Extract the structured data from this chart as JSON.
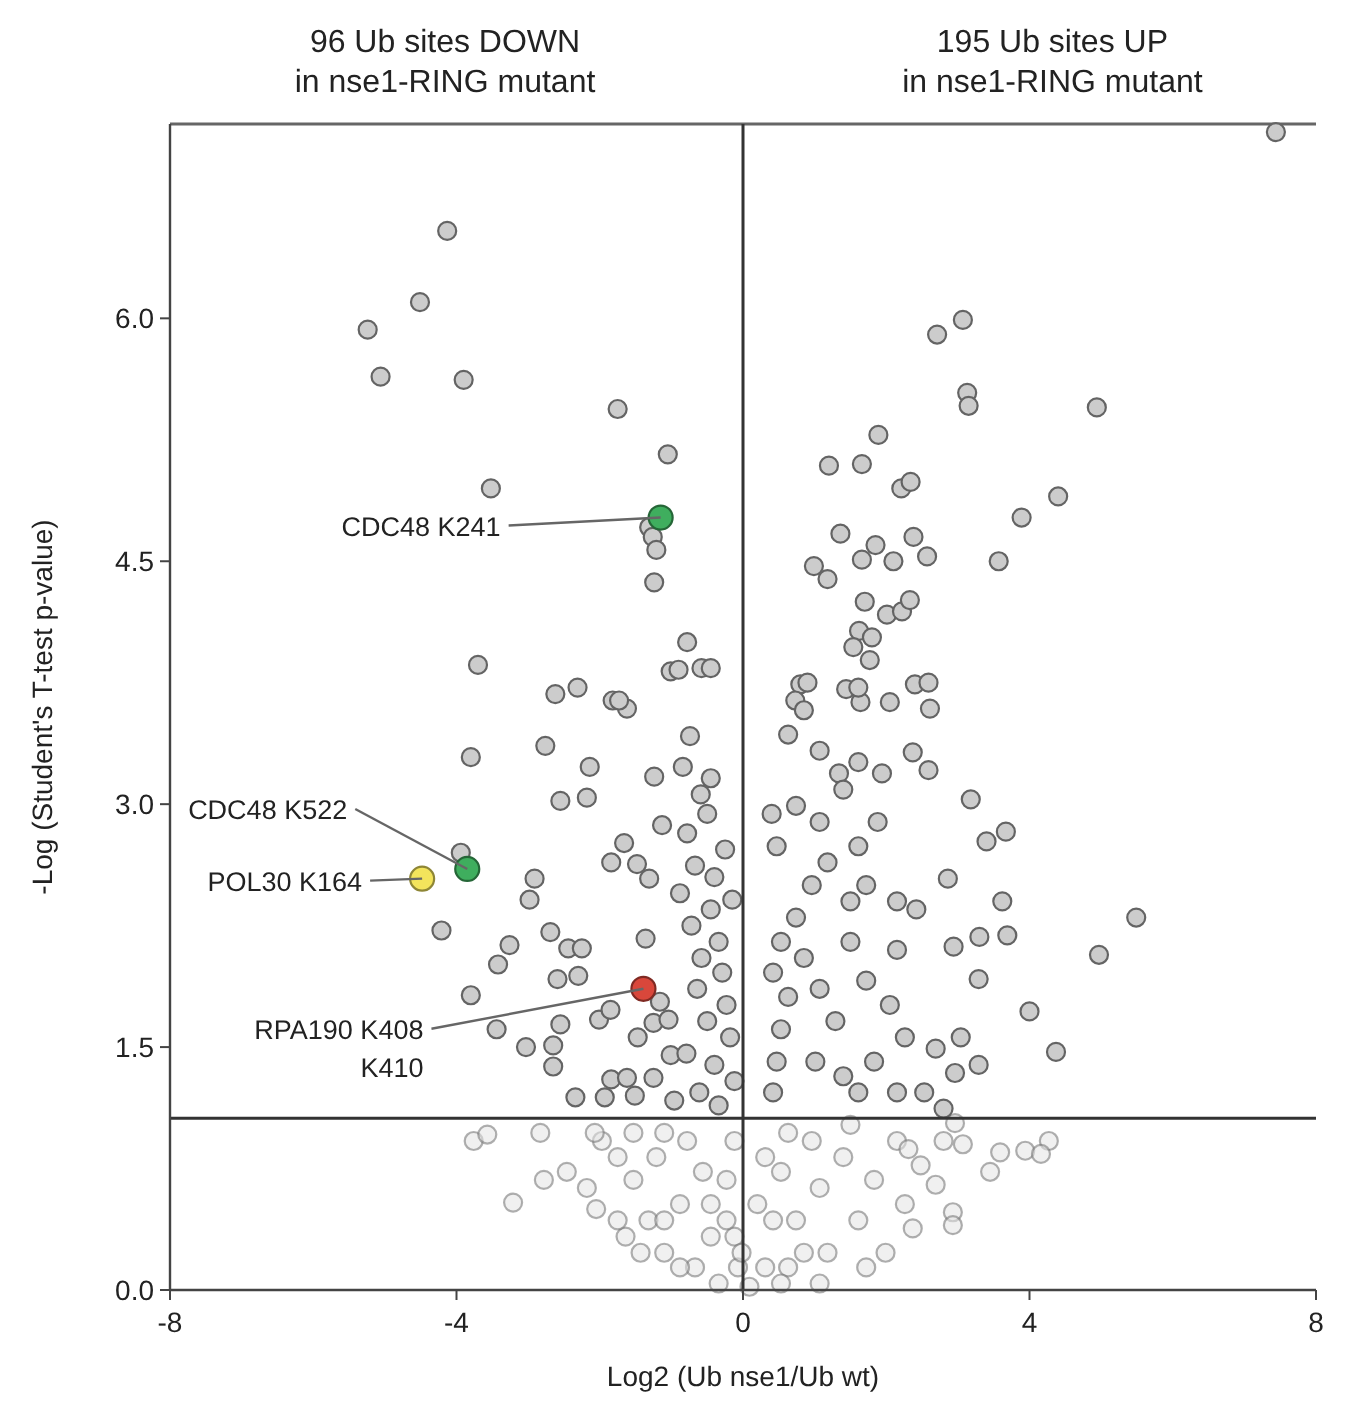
{
  "chart_data": {
    "type": "scatter",
    "xlabel": "Log2 (Ub nse1/Ub wt)",
    "ylabel": "-Log (Student's T-test p-value)",
    "xlim": [
      -8,
      8
    ],
    "xticks": [
      -8,
      -4,
      0,
      4,
      8
    ],
    "ylim": [
      0,
      7.2
    ],
    "yticks": [
      {
        "value": 0,
        "label": "0.0"
      },
      {
        "value": 1.5,
        "label": "1.5"
      },
      {
        "value": 3,
        "label": "3.0"
      },
      {
        "value": 4.5,
        "label": "4.5"
      },
      {
        "value": 6,
        "label": "6.0"
      }
    ],
    "grid": false,
    "marker": "circle",
    "ref_lines": [
      {
        "axis": "x",
        "value": 0,
        "color": "#333333"
      },
      {
        "axis": "y",
        "value": 1.06,
        "color": "#333333"
      }
    ],
    "annotations": [
      "96 Ub sites DOWN\nin nse1-RING mutant",
      "195 Ub sites UP\nin nse1-RING mutant",
      {
        "text": "CDC48 K241",
        "x": -1.15,
        "y": 4.77
      },
      {
        "text": "CDC48 K522",
        "x": -3.85,
        "y": 2.6
      },
      {
        "text": "POL30 K164",
        "x": -4.48,
        "y": 2.54
      },
      {
        "text": "RPA190 K408\nK410",
        "x": -1.39,
        "y": 1.86
      }
    ],
    "series": [
      {
        "color": "#e4e4e4",
        "x": [
          -3.76,
          -3.57,
          -3.21,
          -2.83,
          -2.78,
          -2.46,
          -2.18,
          -2.05,
          -1.97,
          -1.75,
          -1.64,
          -1.53,
          -1.32,
          -1.1,
          -1.21,
          -0.88,
          -0.67,
          -0.45,
          -0.34,
          -0.23,
          -0.07,
          0.09,
          -0.78,
          -0.56,
          -0.12,
          0.31,
          0.42,
          0.53,
          0.63,
          0.74,
          0.96,
          1.07,
          1.18,
          1.4,
          1.61,
          1.83,
          1.99,
          2.15,
          2.37,
          2.48,
          2.69,
          2.93,
          2.93,
          2.96,
          3.07,
          3.45,
          3.59,
          3.94,
          4.27,
          4.16,
          2.31,
          2.8,
          2.26,
          1.72,
          1.07,
          0.85,
          0.53,
          -0.88,
          -1.1,
          -1.43,
          -1.75,
          -0.45,
          -0.12,
          0.31,
          0.63,
          1.5,
          -1.1,
          -1.53,
          -2.07,
          -0.02,
          0.2,
          -0.23
        ],
        "values": [
          0.92,
          0.96,
          0.54,
          0.97,
          0.68,
          0.73,
          0.63,
          0.5,
          0.92,
          0.82,
          0.33,
          0.68,
          0.43,
          0.23,
          0.82,
          0.53,
          0.14,
          0.33,
          0.04,
          0.68,
          0.14,
          0.02,
          0.92,
          0.73,
          0.92,
          0.14,
          0.43,
          0.73,
          0.14,
          0.43,
          0.92,
          0.63,
          0.23,
          0.82,
          0.43,
          0.68,
          0.23,
          0.92,
          0.38,
          0.77,
          0.65,
          0.48,
          0.4,
          1.03,
          0.9,
          0.73,
          0.85,
          0.86,
          0.92,
          0.84,
          0.87,
          0.92,
          0.53,
          0.14,
          0.04,
          0.23,
          0.04,
          0.14,
          0.43,
          0.23,
          0.43,
          0.53,
          0.33,
          0.82,
          0.97,
          1.02,
          0.97,
          0.97,
          0.97,
          0.23,
          0.53,
          0.43
        ]
      },
      {
        "color": "#cccccc",
        "x": [
          7.44,
          -4.13,
          -4.51,
          -5.24,
          -5.06,
          -3.9,
          -1.75,
          -1.05,
          -3.52,
          -1.31,
          -1.26,
          -1.21,
          -1.24,
          -0.78,
          -1.01,
          -0.58,
          -3.7,
          -2.62,
          -2.31,
          -1.82,
          -1.62,
          2.71,
          3.07,
          3.13,
          3.15,
          4.94,
          1.89,
          1.2,
          1.66,
          2.21,
          2.34,
          4.4,
          3.89,
          3.57,
          1.36,
          1.85,
          1.66,
          2.1,
          2.38,
          2.57,
          0.99,
          1.18,
          1.7,
          2.01,
          2.22,
          2.33,
          1.62,
          1.8,
          1.54,
          1.77,
          0.8,
          1.44,
          2.4,
          0.73,
          1.64,
          2.61,
          -3.8,
          -3.94,
          -4.21,
          -3.8,
          -2.76,
          -2.14,
          -2.55,
          -2.18,
          -2.91,
          -2.98,
          -3.26,
          -3.42,
          -2.69,
          -2.44,
          -2.25,
          -2.59,
          -2.3,
          -3.44,
          -3.03,
          -2.65,
          -2.65,
          -2.55,
          -2.34,
          -1.93,
          -1.84,
          -1.62,
          -1.51,
          -2.01,
          -1.85,
          -1.66,
          -1.84,
          -1.48,
          -1.31,
          -1.73,
          -1.24,
          -1.13,
          -1.36,
          -1.47,
          -1.25,
          -1.04,
          -1.16,
          -1.25,
          -1.01,
          -0.96,
          -0.74,
          -0.84,
          -0.45,
          -0.59,
          -0.5,
          -0.78,
          -0.25,
          -0.67,
          -0.4,
          -0.88,
          -0.15,
          -0.45,
          -0.72,
          -0.34,
          -0.58,
          -0.29,
          -0.64,
          -0.23,
          -0.5,
          -0.18,
          -0.79,
          -0.4,
          -0.12,
          -0.61,
          -0.34,
          -0.9,
          -0.45,
          0.4,
          0.47,
          0.63,
          0.85,
          1.07,
          1.34,
          1.61,
          1.94,
          2.37,
          2.59,
          3.18,
          3.4,
          3.67,
          2.86,
          3.62,
          3.69,
          3.3,
          2.94,
          5.49,
          4.97,
          4.0,
          4.37,
          3.29,
          3.04,
          3.29,
          2.96,
          2.69,
          2.8,
          2.53,
          2.15,
          2.42,
          1.72,
          1.5,
          1.18,
          0.96,
          0.74,
          0.53,
          0.42,
          0.63,
          0.53,
          0.47,
          0.42,
          0.85,
          1.07,
          1.29,
          1.01,
          1.4,
          1.72,
          2.05,
          2.26,
          1.83,
          1.61,
          2.15,
          1.5,
          2.15,
          0.74,
          1.07,
          1.4,
          1.61,
          1.88,
          0.9,
          1.61,
          2.05,
          2.59
        ],
        "values": [
          7.15,
          6.54,
          6.1,
          5.93,
          5.64,
          5.62,
          5.44,
          5.16,
          4.95,
          4.71,
          4.65,
          4.57,
          4.37,
          4.0,
          3.82,
          3.84,
          3.86,
          3.68,
          3.72,
          3.64,
          3.59,
          5.9,
          5.99,
          5.54,
          5.46,
          5.45,
          5.28,
          5.09,
          5.1,
          4.95,
          4.99,
          4.9,
          4.77,
          4.5,
          4.67,
          4.6,
          4.51,
          4.5,
          4.65,
          4.53,
          4.47,
          4.39,
          4.25,
          4.17,
          4.19,
          4.26,
          4.07,
          4.03,
          3.97,
          3.89,
          3.74,
          3.71,
          3.74,
          3.64,
          3.63,
          3.59,
          3.29,
          2.7,
          2.22,
          1.82,
          3.36,
          3.23,
          3.02,
          3.04,
          2.54,
          2.41,
          2.13,
          2.01,
          2.21,
          2.11,
          2.11,
          1.92,
          1.94,
          1.61,
          1.5,
          1.51,
          1.38,
          1.64,
          1.19,
          1.19,
          1.3,
          1.31,
          1.2,
          1.67,
          1.73,
          2.76,
          2.64,
          2.63,
          2.54,
          3.64,
          3.17,
          2.87,
          2.17,
          1.56,
          1.65,
          1.67,
          1.78,
          1.31,
          1.45,
          1.17,
          3.42,
          3.23,
          3.16,
          3.06,
          2.94,
          2.82,
          2.72,
          2.62,
          2.55,
          2.45,
          2.41,
          2.35,
          2.25,
          2.15,
          2.05,
          1.96,
          1.86,
          1.76,
          1.66,
          1.56,
          1.46,
          1.39,
          1.29,
          1.22,
          1.14,
          3.83,
          3.84,
          2.94,
          2.74,
          3.43,
          3.58,
          3.33,
          3.19,
          3.26,
          3.19,
          3.32,
          3.21,
          3.03,
          2.77,
          2.83,
          2.54,
          2.4,
          2.19,
          2.18,
          2.12,
          2.3,
          2.07,
          1.72,
          1.47,
          1.92,
          1.56,
          1.39,
          1.34,
          1.49,
          1.12,
          1.22,
          2.4,
          2.35,
          2.5,
          2.4,
          2.64,
          2.5,
          2.3,
          2.15,
          1.96,
          1.81,
          1.61,
          1.41,
          1.22,
          2.05,
          1.86,
          1.66,
          1.41,
          1.32,
          1.91,
          1.76,
          1.56,
          1.41,
          1.22,
          1.22,
          2.15,
          2.1,
          2.99,
          2.89,
          3.09,
          2.74,
          2.89,
          3.75,
          3.72,
          3.63,
          3.75
        ]
      },
      {
        "color": "#3fae5e",
        "x": [
          -1.15,
          -3.85
        ],
        "values": [
          4.77,
          2.6
        ]
      },
      {
        "color": "#f3e45c",
        "x": [
          -4.48
        ],
        "values": [
          2.54
        ]
      },
      {
        "color": "#d9473b",
        "x": [
          -1.39
        ],
        "values": [
          1.86
        ]
      }
    ]
  }
}
